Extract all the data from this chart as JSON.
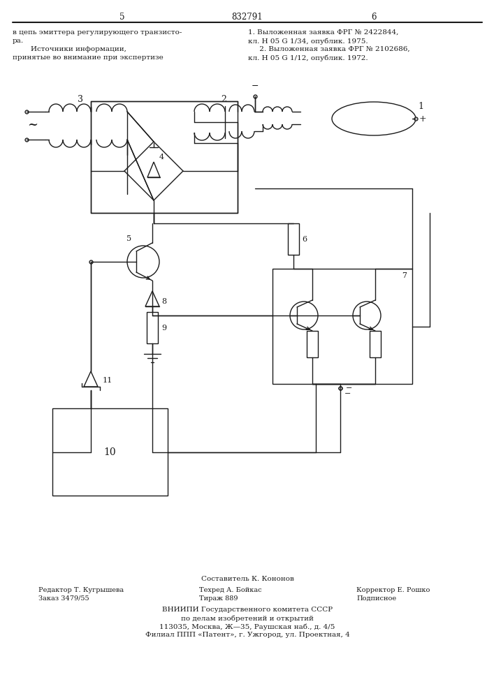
{
  "bg_color": "#ffffff",
  "line_color": "#1a1a1a",
  "page_num_center": "832791",
  "page_num_left": "5",
  "page_num_right": "6",
  "top_left_lines": [
    "в цепь эмиттера регулирующего транзисто-",
    "ра.",
    "        Источники информации,",
    "принятые во внимание при экспертизе"
  ],
  "top_right_lines": [
    "1. Выложенная заявка ФРГ № 2422844,",
    "кл. Н 05 G 1/34, опублик. 1975.",
    "     2. Выложенная заявка ФРГ № 2102686,",
    "кл. Н 05 G 1/12, опублик. 1972."
  ],
  "bot_composer": "Составитель К. Кононов",
  "bot_editor": "Редактор Т. Кугрышева",
  "bot_order": "Заказ 3479/55",
  "bot_tech": "Техред А. Бойкас",
  "bot_circ": "Тираж 889",
  "bot_corr": "Корректор Е. Рошко",
  "bot_sign": "Подписное",
  "bot_vniip1": "ВНИИПИ Государственного комитета СССР",
  "bot_vniip2": "по делам изобретений и открытий",
  "bot_vniip3": "113035, Москва, Ж—35, Раушская наб., д. 4/5",
  "bot_vniip4": "Филиал ППП «Патент», г. Ужгород, ул. Проектная, 4"
}
